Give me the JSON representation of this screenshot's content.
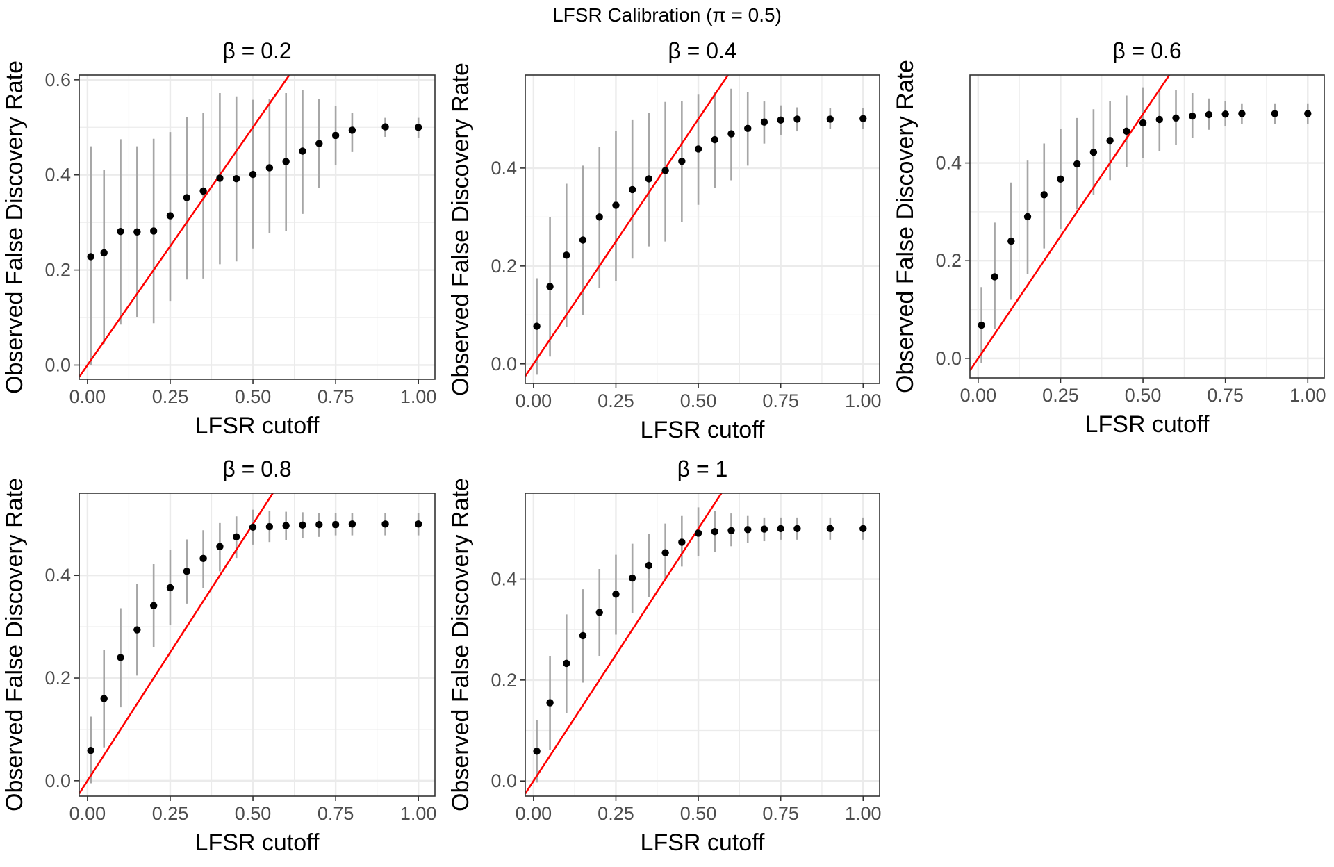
{
  "figure": {
    "title": "LFSR Calibration (π = 0.5)"
  },
  "colors": {
    "point": "#000000",
    "errorbar": "#a6a6a6",
    "reference_line": "#ff0000",
    "grid": "#ebebeb",
    "panel_border": "#333333",
    "tick_label": "#4d4d4d"
  },
  "chart_data": [
    {
      "type": "scatter",
      "title": "β = 0.2",
      "xlabel": "LFSR cutoff",
      "ylabel": "Observed False Discovery Rate",
      "xlim": [
        -0.025,
        1.05
      ],
      "ylim": [
        -0.03,
        0.61
      ],
      "xticks": [
        "0.00",
        "0.25",
        "0.50",
        "0.75",
        "1.00"
      ],
      "yticks": [
        "0.0",
        "0.2",
        "0.4",
        "0.6"
      ],
      "grid": true,
      "reference_line": "y = x",
      "series": [
        {
          "x": [
            0.01,
            0.05,
            0.1,
            0.15,
            0.2,
            0.25,
            0.3,
            0.35,
            0.4,
            0.45,
            0.5,
            0.55,
            0.6,
            0.65,
            0.7,
            0.75,
            0.8,
            0.9,
            1.0
          ],
          "y": [
            0.228,
            0.236,
            0.281,
            0.28,
            0.282,
            0.314,
            0.352,
            0.366,
            0.393,
            0.392,
            0.401,
            0.415,
            0.428,
            0.45,
            0.466,
            0.483,
            0.494,
            0.501,
            0.5
          ],
          "lower": [
            0.0,
            0.045,
            0.085,
            0.1,
            0.088,
            0.135,
            0.18,
            0.182,
            0.212,
            0.218,
            0.245,
            0.278,
            0.282,
            0.318,
            0.372,
            0.42,
            0.448,
            0.48,
            0.478
          ],
          "upper": [
            0.46,
            0.41,
            0.475,
            0.46,
            0.476,
            0.49,
            0.522,
            0.53,
            0.572,
            0.565,
            0.558,
            0.56,
            0.572,
            0.578,
            0.56,
            0.545,
            0.53,
            0.52,
            0.52
          ]
        }
      ]
    },
    {
      "type": "scatter",
      "title": "β = 0.4",
      "xlabel": "LFSR cutoff",
      "ylabel": "Observed False Discovery Rate",
      "xlim": [
        -0.025,
        1.05
      ],
      "ylim": [
        -0.04,
        0.59
      ],
      "xticks": [
        "0.00",
        "0.25",
        "0.50",
        "0.75",
        "1.00"
      ],
      "yticks": [
        "0.0",
        "0.2",
        "0.4"
      ],
      "grid": true,
      "reference_line": "y = x",
      "series": [
        {
          "x": [
            0.01,
            0.05,
            0.1,
            0.15,
            0.2,
            0.25,
            0.3,
            0.35,
            0.4,
            0.45,
            0.5,
            0.55,
            0.6,
            0.65,
            0.7,
            0.75,
            0.8,
            0.9,
            1.0
          ],
          "y": [
            0.077,
            0.158,
            0.222,
            0.253,
            0.3,
            0.324,
            0.356,
            0.378,
            0.395,
            0.414,
            0.439,
            0.458,
            0.47,
            0.481,
            0.494,
            0.498,
            0.5,
            0.5,
            0.501
          ],
          "lower": [
            -0.022,
            0.015,
            0.075,
            0.1,
            0.155,
            0.17,
            0.215,
            0.24,
            0.25,
            0.29,
            0.325,
            0.36,
            0.375,
            0.405,
            0.45,
            0.468,
            0.475,
            0.48,
            0.48
          ],
          "upper": [
            0.175,
            0.3,
            0.368,
            0.405,
            0.443,
            0.476,
            0.498,
            0.512,
            0.535,
            0.536,
            0.55,
            0.555,
            0.562,
            0.556,
            0.536,
            0.528,
            0.524,
            0.522,
            0.522
          ]
        }
      ]
    },
    {
      "type": "scatter",
      "title": "β = 0.6",
      "xlabel": "LFSR cutoff",
      "ylabel": "Observed False Discovery Rate",
      "xlim": [
        -0.025,
        1.05
      ],
      "ylim": [
        -0.04,
        0.58
      ],
      "xticks": [
        "0.00",
        "0.25",
        "0.50",
        "0.75",
        "1.00"
      ],
      "yticks": [
        "0.0",
        "0.2",
        "0.4"
      ],
      "grid": true,
      "reference_line": "y = x",
      "series": [
        {
          "x": [
            0.01,
            0.05,
            0.1,
            0.15,
            0.2,
            0.25,
            0.3,
            0.35,
            0.4,
            0.45,
            0.5,
            0.55,
            0.6,
            0.65,
            0.7,
            0.75,
            0.8,
            0.9,
            1.0
          ],
          "y": [
            0.068,
            0.167,
            0.24,
            0.29,
            0.335,
            0.367,
            0.398,
            0.422,
            0.446,
            0.465,
            0.482,
            0.489,
            0.492,
            0.496,
            0.499,
            0.5,
            0.501,
            0.501,
            0.501
          ],
          "lower": [
            -0.01,
            0.06,
            0.12,
            0.172,
            0.225,
            0.265,
            0.305,
            0.335,
            0.365,
            0.392,
            0.41,
            0.425,
            0.437,
            0.452,
            0.468,
            0.475,
            0.48,
            0.48,
            0.48
          ],
          "upper": [
            0.146,
            0.278,
            0.36,
            0.405,
            0.44,
            0.47,
            0.492,
            0.51,
            0.527,
            0.538,
            0.555,
            0.552,
            0.55,
            0.543,
            0.532,
            0.527,
            0.522,
            0.522,
            0.522
          ]
        }
      ]
    },
    {
      "type": "scatter",
      "title": "β = 0.8",
      "xlabel": "LFSR cutoff",
      "ylabel": "Observed False Discovery Rate",
      "xlim": [
        -0.025,
        1.05
      ],
      "ylim": [
        -0.03,
        0.56
      ],
      "xticks": [
        "0.00",
        "0.25",
        "0.50",
        "0.75",
        "1.00"
      ],
      "yticks": [
        "0.0",
        "0.2",
        "0.4"
      ],
      "grid": true,
      "reference_line": "y = x",
      "series": [
        {
          "x": [
            0.01,
            0.05,
            0.1,
            0.15,
            0.2,
            0.25,
            0.3,
            0.35,
            0.4,
            0.45,
            0.5,
            0.55,
            0.6,
            0.65,
            0.7,
            0.75,
            0.8,
            0.9,
            1.0
          ],
          "y": [
            0.059,
            0.16,
            0.24,
            0.294,
            0.341,
            0.376,
            0.408,
            0.433,
            0.456,
            0.475,
            0.494,
            0.495,
            0.497,
            0.498,
            0.499,
            0.499,
            0.5,
            0.5,
            0.5
          ],
          "lower": [
            -0.005,
            0.065,
            0.143,
            0.205,
            0.26,
            0.303,
            0.345,
            0.376,
            0.408,
            0.434,
            0.46,
            0.465,
            0.468,
            0.472,
            0.475,
            0.478,
            0.478,
            0.478,
            0.478
          ],
          "upper": [
            0.125,
            0.255,
            0.336,
            0.384,
            0.422,
            0.45,
            0.47,
            0.488,
            0.502,
            0.515,
            0.528,
            0.526,
            0.524,
            0.523,
            0.522,
            0.522,
            0.522,
            0.522,
            0.522
          ]
        }
      ]
    },
    {
      "type": "scatter",
      "title": "β = 1",
      "xlabel": "LFSR cutoff",
      "ylabel": "Observed False Discovery Rate",
      "xlim": [
        -0.025,
        1.05
      ],
      "ylim": [
        -0.03,
        0.57
      ],
      "xticks": [
        "0.00",
        "0.25",
        "0.50",
        "0.75",
        "1.00"
      ],
      "yticks": [
        "0.0",
        "0.2",
        "0.4"
      ],
      "grid": true,
      "reference_line": "y = x",
      "series": [
        {
          "x": [
            0.01,
            0.05,
            0.1,
            0.15,
            0.2,
            0.25,
            0.3,
            0.35,
            0.4,
            0.45,
            0.5,
            0.55,
            0.6,
            0.65,
            0.7,
            0.75,
            0.8,
            0.9,
            1.0
          ],
          "y": [
            0.059,
            0.155,
            0.233,
            0.288,
            0.334,
            0.37,
            0.402,
            0.427,
            0.452,
            0.473,
            0.491,
            0.494,
            0.496,
            0.498,
            0.499,
            0.5,
            0.5,
            0.5,
            0.5
          ],
          "lower": [
            -0.003,
            0.062,
            0.135,
            0.195,
            0.248,
            0.29,
            0.332,
            0.365,
            0.398,
            0.425,
            0.445,
            0.453,
            0.465,
            0.472,
            0.475,
            0.478,
            0.478,
            0.478,
            0.478
          ],
          "upper": [
            0.12,
            0.248,
            0.33,
            0.38,
            0.42,
            0.448,
            0.47,
            0.49,
            0.51,
            0.525,
            0.542,
            0.535,
            0.53,
            0.525,
            0.522,
            0.522,
            0.522,
            0.522,
            0.522
          ]
        }
      ]
    }
  ]
}
